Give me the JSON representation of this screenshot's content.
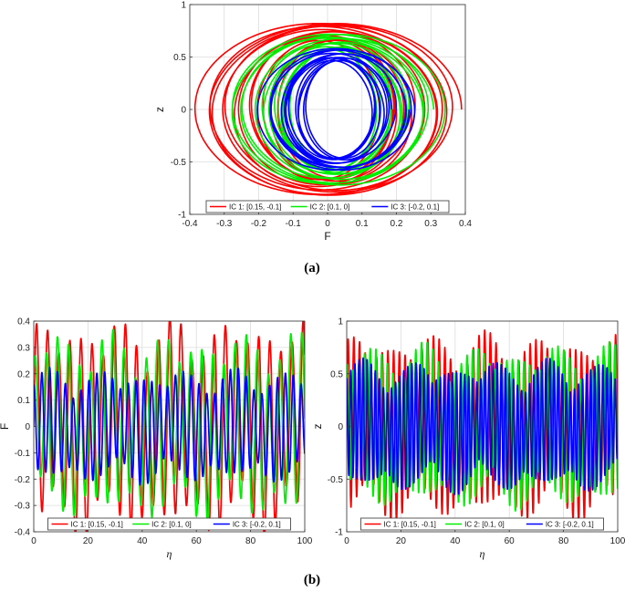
{
  "captions": {
    "a": "(a)",
    "b": "(b)"
  },
  "legend": [
    {
      "label": "IC 1: [0.15, -0.1]",
      "color": "#ff0000"
    },
    {
      "label": "IC 2: [0.1, 0]",
      "color": "#00ee00"
    },
    {
      "label": "IC 3: [-0.2, 0.1]",
      "color": "#0000ff"
    }
  ],
  "chart_data": [
    {
      "type": "line",
      "panel": "(a)",
      "xlabel": "F",
      "ylabel": "z",
      "xlim": [
        -0.4,
        0.4
      ],
      "ylim": [
        -1,
        1
      ],
      "xticks": [
        "-0.4",
        "-0.3",
        "-0.2",
        "-0.1",
        "0",
        "0.1",
        "0.2",
        "0.3",
        "0.4"
      ],
      "yticks": [
        "-1",
        "-0.5",
        "0",
        "0.5",
        "1"
      ],
      "grid": true,
      "legend_position": "bottom-center",
      "series": [
        {
          "name": "IC 1: [0.15, -0.1]",
          "color": "#ff0000",
          "F_amplitude": 0.36,
          "z_amplitude": 0.82,
          "F_center": 0.0
        },
        {
          "name": "IC 2: [0.1, 0]",
          "color": "#00ee00",
          "F_amplitude": 0.3,
          "z_amplitude": 0.72,
          "F_center": 0.02
        },
        {
          "name": "IC 3: [-0.2, 0.1]",
          "color": "#0000ff",
          "F_amplitude": 0.22,
          "z_amplitude": 0.58,
          "F_center": 0.03
        }
      ]
    },
    {
      "type": "line",
      "panel": "(b) left",
      "xlabel": "η",
      "ylabel": "F",
      "xlim": [
        0,
        100
      ],
      "ylim": [
        -0.4,
        0.4
      ],
      "xticks": [
        "0",
        "20",
        "40",
        "60",
        "80",
        "100"
      ],
      "yticks": [
        "-0.4",
        "-0.3",
        "-0.2",
        "-0.1",
        "0",
        "0.1",
        "0.2",
        "0.3",
        "0.4"
      ],
      "grid": true,
      "legend_position": "bottom-center",
      "series": [
        {
          "name": "IC 1: [0.15, -0.1]",
          "color": "#ff0000",
          "peak_max": 0.38,
          "peak_min": -0.36,
          "period": 4.1
        },
        {
          "name": "IC 2: [0.1, 0]",
          "color": "#00ee00",
          "peak_max": 0.33,
          "peak_min": -0.33,
          "period": 4.1
        },
        {
          "name": "IC 3: [-0.2, 0.1]",
          "color": "#0000ff",
          "peak_max": 0.2,
          "peak_min": -0.2,
          "period": 2.9
        }
      ]
    },
    {
      "type": "line",
      "panel": "(b) right",
      "xlabel": "η",
      "ylabel": "z",
      "xlim": [
        0,
        100
      ],
      "ylim": [
        -1,
        1
      ],
      "xticks": [
        "0",
        "20",
        "40",
        "60",
        "80",
        "100"
      ],
      "yticks": [
        "-1",
        "-0.5",
        "0",
        "0.5",
        "1"
      ],
      "grid": true,
      "legend_position": "bottom-center",
      "series": [
        {
          "name": "IC 1: [0.15, -0.1]",
          "color": "#ff0000",
          "peak_max": 0.82,
          "peak_min": -0.82,
          "period": 2.1
        },
        {
          "name": "IC 2: [0.1, 0]",
          "color": "#00ee00",
          "peak_max": 0.72,
          "peak_min": -0.72,
          "period": 2.1
        },
        {
          "name": "IC 3: [-0.2, 0.1]",
          "color": "#0000ff",
          "peak_max": 0.58,
          "peak_min": -0.58,
          "period": 1.5
        }
      ]
    }
  ]
}
